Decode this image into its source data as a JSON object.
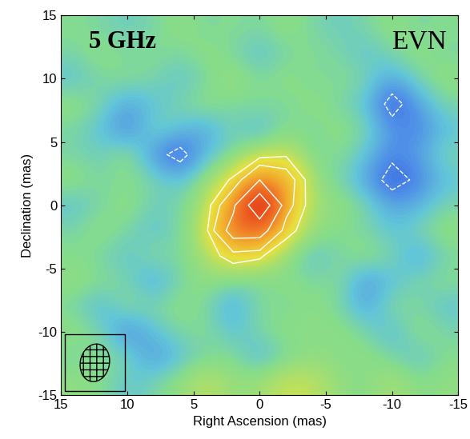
{
  "chart_data": {
    "type": "heatmap",
    "annotations": [
      "5 GHz",
      "EVN"
    ],
    "x_label": "Right Ascension (mas)",
    "y_label": "Declination (mas)",
    "xlim": [
      15,
      -15
    ],
    "ylim": [
      -15,
      15
    ],
    "xticks": [
      15,
      10,
      5,
      0,
      -5,
      -10,
      -15
    ],
    "yticks": [
      -15,
      -10,
      -5,
      0,
      5,
      10,
      15
    ],
    "x": [
      -14,
      -12,
      -10,
      -8,
      -6,
      -4,
      -2,
      0,
      2,
      4,
      6,
      8,
      10,
      12,
      14
    ],
    "y": [
      -14,
      -12,
      -10,
      -8,
      -6,
      -4,
      -2,
      0,
      2,
      4,
      6,
      8,
      10,
      12,
      14
    ],
    "values": [
      [
        0.1,
        0.05,
        0.2,
        0.05,
        0.1,
        0.3,
        0.35,
        0.15,
        0.1,
        0.3,
        0.1,
        0.0,
        -0.1,
        0.05,
        0.1
      ],
      [
        0.05,
        -0.1,
        0.0,
        0.1,
        0.05,
        0.1,
        0.0,
        -0.15,
        0.05,
        0.0,
        -0.1,
        -0.25,
        0.0,
        0.05,
        0.0
      ],
      [
        0.0,
        0.1,
        -0.15,
        0.0,
        0.1,
        0.05,
        0.1,
        0.0,
        -0.1,
        0.05,
        0.0,
        -0.1,
        -0.3,
        0.0,
        0.1
      ],
      [
        -0.1,
        0.0,
        0.05,
        -0.2,
        0.0,
        0.1,
        0.0,
        0.05,
        -0.2,
        0.0,
        0.1,
        0.0,
        0.05,
        -0.15,
        0.0
      ],
      [
        0.05,
        0.0,
        -0.1,
        -0.25,
        0.05,
        0.0,
        0.1,
        0.0,
        0.0,
        0.1,
        0.0,
        -0.2,
        0.0,
        0.05,
        0.1
      ],
      [
        0.0,
        -0.2,
        0.0,
        0.1,
        0.0,
        -0.1,
        0.05,
        0.4,
        0.5,
        0.2,
        0.0,
        0.05,
        -0.1,
        0.0,
        0.05
      ],
      [
        0.1,
        0.0,
        -0.1,
        0.0,
        0.05,
        0.1,
        0.5,
        1.8,
        1.8,
        0.3,
        0.0,
        -0.1,
        0.0,
        0.1,
        0.0
      ],
      [
        0.0,
        -0.15,
        -0.2,
        0.0,
        0.1,
        0.15,
        0.9,
        4.0,
        1.2,
        0.2,
        0.0,
        -0.05,
        0.1,
        0.0,
        -0.1
      ],
      [
        -0.1,
        -0.3,
        -0.45,
        -0.2,
        0.0,
        0.1,
        1.0,
        1.4,
        0.4,
        0.1,
        -0.1,
        0.0,
        0.05,
        0.0,
        0.1
      ],
      [
        0.0,
        -0.2,
        -0.3,
        -0.1,
        0.05,
        0.0,
        0.3,
        0.2,
        0.0,
        -0.1,
        -0.45,
        -0.25,
        0.1,
        -0.05,
        0.0
      ],
      [
        -0.1,
        -0.3,
        -0.25,
        0.0,
        0.1,
        0.0,
        0.05,
        -0.15,
        0.0,
        -0.2,
        -0.1,
        0.0,
        -0.3,
        -0.1,
        0.0
      ],
      [
        0.0,
        -0.2,
        -0.45,
        -0.1,
        0.0,
        0.1,
        0.0,
        0.05,
        0.0,
        0.1,
        0.0,
        -0.1,
        -0.2,
        0.0,
        0.1
      ],
      [
        0.1,
        0.0,
        -0.2,
        0.0,
        0.05,
        0.0,
        0.1,
        0.0,
        0.15,
        0.0,
        -0.1,
        0.0,
        0.05,
        0.0,
        -0.1
      ],
      [
        0.0,
        0.1,
        0.0,
        -0.1,
        0.0,
        0.05,
        0.0,
        -0.1,
        0.0,
        0.1,
        0.0,
        0.05,
        0.0,
        0.1,
        0.0
      ],
      [
        0.05,
        0.0,
        0.1,
        0.0,
        -0.05,
        0.0,
        0.1,
        0.0,
        0.05,
        0.0,
        0.1,
        0.0,
        -0.05,
        0.0,
        0.05
      ]
    ],
    "color_range": [
      -0.5,
      4.0
    ],
    "contour_levels": [
      -0.35,
      0.35,
      0.7,
      1.4,
      2.8
    ],
    "beam": {
      "major": 3.0,
      "minor": 2.2,
      "angle": 10
    }
  }
}
